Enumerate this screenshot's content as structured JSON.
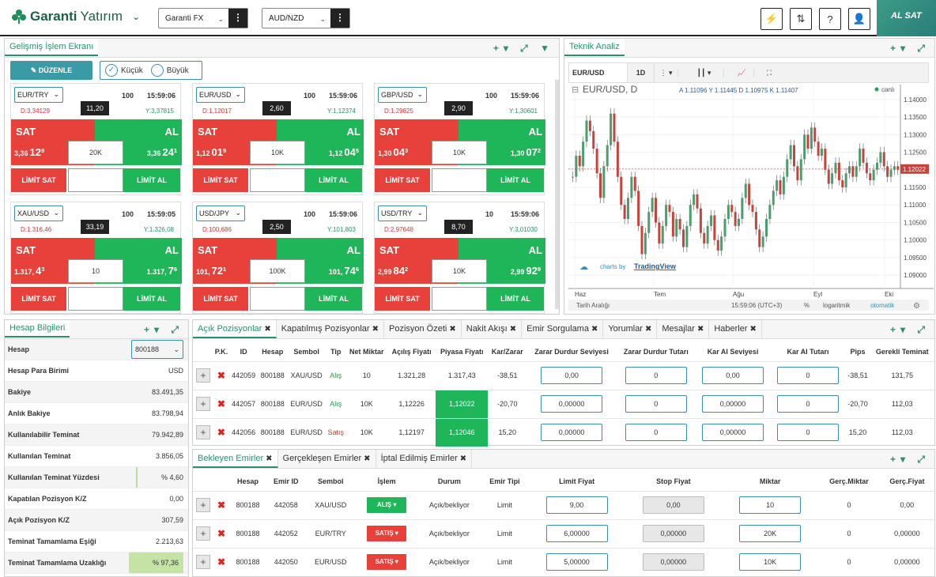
{
  "header": {
    "brand": "Garanti",
    "brand2": "Yatırım",
    "account_select": "Garanti FX",
    "pair_select": "AUD/NZD",
    "alsat": "AL SAT"
  },
  "trading": {
    "title": "Gelişmiş İşlem Ekranı",
    "edit": "DÜZENLE",
    "small": "Küçük",
    "large": "Büyük",
    "cards": [
      {
        "pair": "EUR/TRY",
        "lot": "100",
        "time": "15:59:06",
        "spread": "11,20",
        "low": "D:3,34129",
        "high": "Y:3,37815",
        "sat_pre": "3,36",
        "sat_big": "12",
        "sat_sup": "9",
        "al_pre": "3,36",
        "al_big": "24",
        "al_sup": "1",
        "qty": "20K",
        "sell": "SAT",
        "buy": "AL",
        "lsell": "LİMİT SAT",
        "lbuy": "LİMİT AL"
      },
      {
        "pair": "EUR/USD",
        "lot": "100",
        "time": "15:59:06",
        "spread": "2,60",
        "low": "D:1,12017",
        "high": "Y:1,12374",
        "sat_pre": "1,12",
        "sat_big": "01",
        "sat_sup": "9",
        "al_pre": "1,12",
        "al_big": "04",
        "al_sup": "5",
        "qty": "10K",
        "sell": "SAT",
        "buy": "AL",
        "lsell": "LİMİT SAT",
        "lbuy": "LİMİT AL"
      },
      {
        "pair": "GBP/USD",
        "lot": "100",
        "time": "15:59:06",
        "spread": "2,90",
        "low": "D:1,29825",
        "high": "Y:1,30601",
        "sat_pre": "1,30",
        "sat_big": "04",
        "sat_sup": "3",
        "al_pre": "1,30",
        "al_big": "07",
        "al_sup": "2",
        "qty": "10K",
        "sell": "SAT",
        "buy": "AL",
        "lsell": "LİMİT SAT",
        "lbuy": "LİMİT AL"
      },
      {
        "pair": "XAU/USD",
        "lot": "100",
        "time": "15:59:05",
        "spread": "33,19",
        "low": "D:1.316,46",
        "high": "Y:1.326,08",
        "sat_pre": "1.317,",
        "sat_big": "4",
        "sat_sup": "3",
        "al_pre": "1.317,",
        "al_big": "7",
        "al_sup": "6",
        "qty": "10",
        "sell": "SAT",
        "buy": "AL",
        "lsell": "LİMİT SAT",
        "lbuy": "LİMİT AL"
      },
      {
        "pair": "USD/JPY",
        "lot": "100",
        "time": "15:59:06",
        "spread": "2,50",
        "low": "D:100,686",
        "high": "Y:101,803",
        "sat_pre": "101,",
        "sat_big": "72",
        "sat_sup": "1",
        "al_pre": "101,",
        "al_big": "74",
        "al_sup": "6",
        "qty": "100K",
        "sell": "SAT",
        "buy": "AL",
        "lsell": "LİMİT SAT",
        "lbuy": "LİMİT AL"
      },
      {
        "pair": "USD/TRY",
        "lot": "10",
        "time": "15:59:06",
        "spread": "8,70",
        "low": "D:2,97648",
        "high": "Y:3,01030",
        "sat_pre": "2,99",
        "sat_big": "84",
        "sat_sup": "2",
        "al_pre": "2,99",
        "al_big": "92",
        "al_sup": "9",
        "qty": "10K",
        "sell": "SAT",
        "buy": "AL",
        "lsell": "LİMİT SAT",
        "lbuy": "LİMİT AL"
      }
    ]
  },
  "analysis": {
    "title": "Teknik Analiz",
    "symbol": "EUR/USD",
    "interval": "1D",
    "chart_title": "EUR/USD, D",
    "ohlc": "A 1.11096  Y 1.11445  D 1.10975  K 1.11407",
    "live": "canlı",
    "price_tag": "1.12022",
    "credit1": "charts by ",
    "credit2": "TradingView",
    "range": "Tarih Aralığı",
    "clock": "15:59:06 (UTC+3)",
    "pct": "%",
    "log": "logaritmik",
    "auto": "otomatik",
    "xlabels": [
      "Haz",
      "Tem",
      "Ağu",
      "Eyl",
      "Eki"
    ],
    "ylabels": [
      "1.14000",
      "1.13500",
      "1.13000",
      "1.12500",
      "1.12000",
      "1.11500",
      "1.11000",
      "1.10500",
      "1.10000",
      "1.09500",
      "1.09000"
    ]
  },
  "account": {
    "title": "Hesap Bilgileri",
    "rows": [
      {
        "label": "Hesap",
        "value": "800188"
      },
      {
        "label": "Hesap Para Birimi",
        "value": "USD"
      },
      {
        "label": "Bakiye",
        "value": "83.491,35"
      },
      {
        "label": "Anlık Bakiye",
        "value": "83.798,94"
      },
      {
        "label": "Kullanılabilir Teminat",
        "value": "79.942,89"
      },
      {
        "label": "Kullanılan Teminat",
        "value": "3.856,05"
      },
      {
        "label": "Kullanılan Teminat Yüzdesi",
        "value": "% 4,60"
      },
      {
        "label": "Kapatılan Pozisyon K/Z",
        "value": "0,00"
      },
      {
        "label": "Açık Pozisyon K/Z",
        "value": "307,59"
      },
      {
        "label": "Teminat Tamamlama Eşiği",
        "value": "2.213,63"
      },
      {
        "label": "Teminat Tamamlama Uzaklığı",
        "value": "% 97,36"
      }
    ]
  },
  "positions": {
    "tabs": [
      "Açık Pozisyonlar",
      "Kapatılmış Pozisyonlar",
      "Pozisyon Özeti",
      "Nakit Akışı",
      "Emir Sorgulama",
      "Yorumlar",
      "Mesajlar",
      "Haberler"
    ],
    "headers": [
      "P.K.",
      "ID",
      "Hesap",
      "Sembol",
      "Tip",
      "Net Miktar",
      "Açılış Fiyatı",
      "Piyasa Fiyatı",
      "Kar/Zarar",
      "Zarar Durdur Seviyesi",
      "Zarar Durdur Tutarı",
      "Kar Al Seviyesi",
      "Kar Al Tutarı",
      "Pips",
      "Gerekli Teminat"
    ],
    "rows": [
      {
        "id": "442059",
        "acct": "800188",
        "sym": "XAU/USD",
        "type": "Alış",
        "qty": "10",
        "open": "1.321,28",
        "mkt": "1.317,43",
        "pl": "-38,51",
        "sl": "0,00",
        "slamt": "0",
        "tp": "0,00",
        "tpamt": "0",
        "pips": "-38,51",
        "margin": "131,75"
      },
      {
        "id": "442057",
        "acct": "800188",
        "sym": "EUR/USD",
        "type": "Alış",
        "qty": "10K",
        "open": "1,12226",
        "mkt": "1,12022",
        "pl": "-20,70",
        "sl": "0,00000",
        "slamt": "0",
        "tp": "0,00000",
        "tpamt": "0",
        "pips": "-20,70",
        "margin": "112,03"
      },
      {
        "id": "442056",
        "acct": "800188",
        "sym": "EUR/USD",
        "type": "Satış",
        "qty": "10K",
        "open": "1,12197",
        "mkt": "1,12046",
        "pl": "15,20",
        "sl": "0,00000",
        "slamt": "0",
        "tp": "0,00000",
        "tpamt": "0",
        "pips": "15,20",
        "margin": "112,03"
      }
    ]
  },
  "orders": {
    "tabs": [
      "Bekleyen Emirler",
      "Gerçekleşen Emirler",
      "İptal Edilmiş Emirler"
    ],
    "headers": [
      "Hesap",
      "Emir ID",
      "Sembol",
      "İşlem",
      "Durum",
      "Emir Tipi",
      "Limit Fiyat",
      "Stop Fiyat",
      "Miktar",
      "Gerç.Miktar",
      "Gerç.Fiyat"
    ],
    "rows": [
      {
        "acct": "800188",
        "id": "442058",
        "sym": "XAU/USD",
        "side": "ALIŞ",
        "status": "Açık/bekliyor",
        "otype": "Limit",
        "limit": "9,00",
        "stop": "0,00",
        "qty": "10",
        "fqty": "0",
        "fprice": "0,00"
      },
      {
        "acct": "800188",
        "id": "442052",
        "sym": "EUR/TRY",
        "side": "SATIŞ",
        "status": "Açık/bekliyor",
        "otype": "Limit",
        "limit": "6,00000",
        "stop": "0,00000",
        "qty": "20K",
        "fqty": "0",
        "fprice": "0,00000"
      },
      {
        "acct": "800188",
        "id": "442050",
        "sym": "EUR/USD",
        "side": "SATIŞ",
        "status": "Açık/bekliyor",
        "otype": "Limit",
        "limit": "5,00000",
        "stop": "0,00000",
        "qty": "10K",
        "fqty": "0",
        "fprice": "0,00000"
      }
    ]
  },
  "chart_data": {
    "type": "candlestick",
    "title": "EUR/USD, D",
    "ylim": [
      1.088,
      1.142
    ],
    "x_ticks": [
      "Haz",
      "Tem",
      "Ağu",
      "Eyl",
      "Eki"
    ],
    "last_price": 1.12022
  }
}
